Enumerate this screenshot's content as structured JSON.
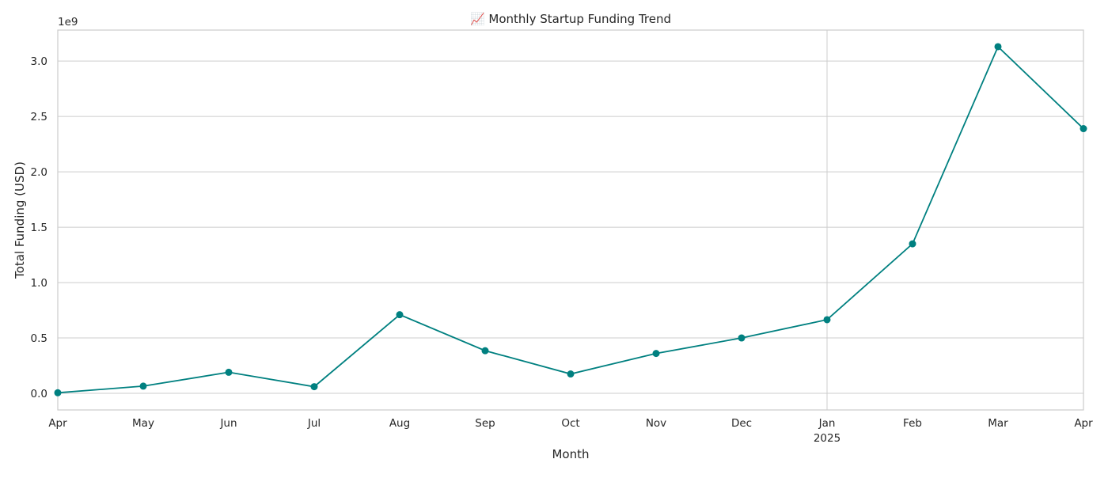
{
  "chart_data": {
    "type": "line",
    "title": "📈 Monthly Startup Funding Trend",
    "xlabel": "Month",
    "ylabel": "Total Funding (USD)",
    "y_offset_label": "1e9",
    "categories": [
      "Apr",
      "May",
      "Jun",
      "Jul",
      "Aug",
      "Sep",
      "Oct",
      "Nov",
      "Dec",
      "Jan",
      "Feb",
      "Mar",
      "Apr"
    ],
    "category_sublabels": [
      "",
      "",
      "",
      "",
      "",
      "",
      "",
      "",
      "",
      "2025",
      "",
      "",
      ""
    ],
    "values": [
      0.005,
      0.065,
      0.19,
      0.06,
      0.71,
      0.385,
      0.175,
      0.36,
      0.5,
      0.665,
      1.35,
      3.13,
      2.39
    ],
    "value_unit": "1e9 USD",
    "yticks": [
      0.0,
      0.5,
      1.0,
      1.5,
      2.0,
      2.5,
      3.0
    ],
    "ytick_labels": [
      "0.0",
      "0.5",
      "1.0",
      "1.5",
      "2.0",
      "2.5",
      "3.0"
    ],
    "ylim": [
      -0.15,
      3.28
    ],
    "grid": true,
    "legend": "none",
    "color": "#008080"
  }
}
